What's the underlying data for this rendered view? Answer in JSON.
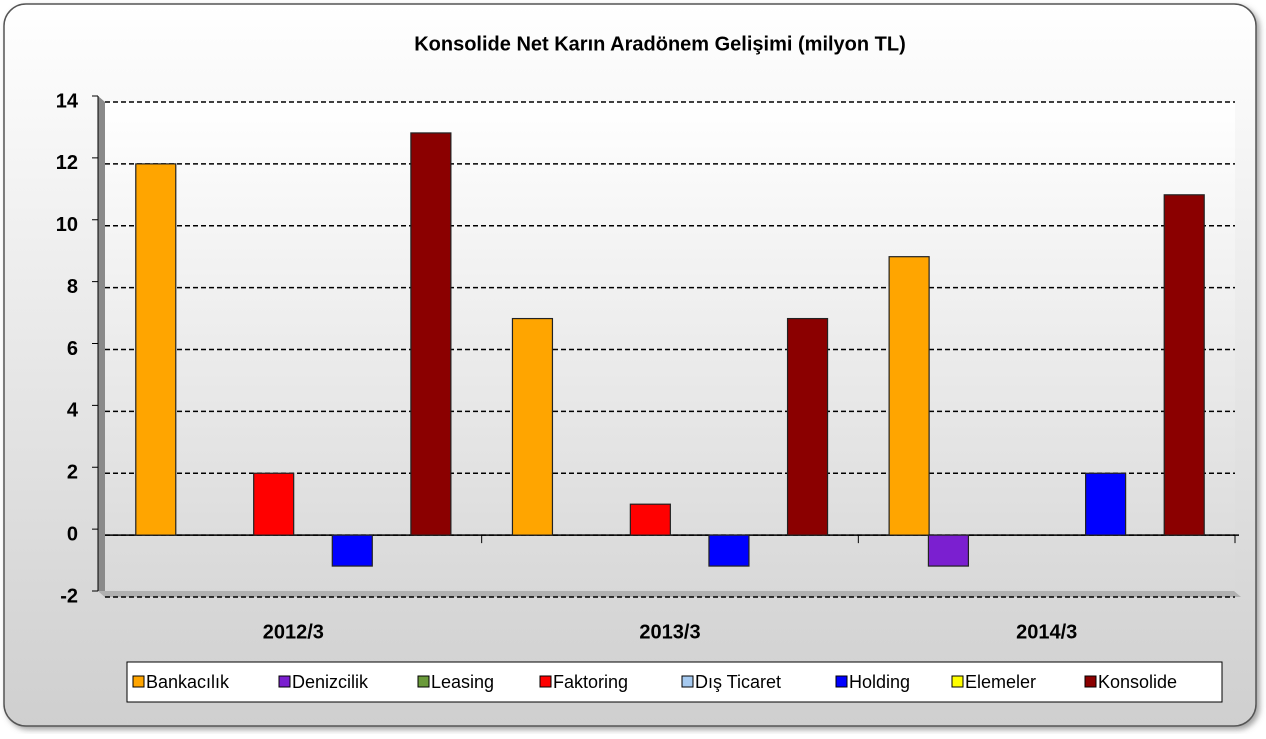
{
  "chart_data": {
    "type": "bar",
    "title": "Konsolide Net Karın Aradönem Gelişimi (milyon TL)",
    "categories": [
      "2012/3",
      "2013/3",
      "2014/3"
    ],
    "series": [
      {
        "name": "Bankacılık",
        "color": "#FFA500",
        "values": [
          12,
          7,
          9
        ]
      },
      {
        "name": "Denizcilik",
        "color": "#7B1FD0",
        "values": [
          0,
          0,
          -1
        ]
      },
      {
        "name": "Leasing",
        "color": "#6A9A3A",
        "values": [
          0,
          0,
          0
        ]
      },
      {
        "name": "Faktoring",
        "color": "#FF0000",
        "values": [
          2,
          1,
          0
        ]
      },
      {
        "name": "Dış Ticaret",
        "color": "#A6CAF0",
        "values": [
          0,
          0,
          0
        ]
      },
      {
        "name": "Holding",
        "color": "#0000FF",
        "values": [
          -1,
          -1,
          2
        ]
      },
      {
        "name": "Elemeler",
        "color": "#FFFF00",
        "values": [
          0,
          0,
          0
        ]
      },
      {
        "name": "Konsolide",
        "color": "#8B0000",
        "values": [
          13,
          7,
          11
        ]
      }
    ],
    "ylim": [
      -2,
      14
    ],
    "yticks": [
      -2,
      0,
      2,
      4,
      6,
      8,
      10,
      12,
      14
    ],
    "grid": true,
    "legend": "bottom"
  }
}
